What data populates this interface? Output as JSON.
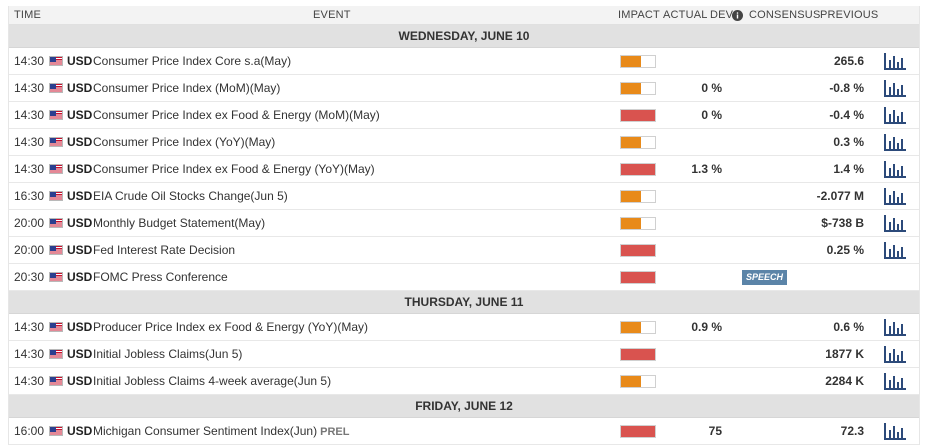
{
  "header": {
    "time": "TIME",
    "event": "EVENT",
    "impact": "IMPACT",
    "actual": "ACTUAL",
    "dev": "DEV",
    "consensus": "CONSENSUS",
    "previous": "PREVIOUS"
  },
  "colors": {
    "impact_high": "#d9534f",
    "impact_medium": "#e88a1a",
    "chart_icon": "#2c4a7a",
    "speech_badge": "#5b84a8"
  },
  "days": [
    {
      "label": "WEDNESDAY, JUNE 10",
      "events": [
        {
          "time": "14:30",
          "currency": "USD",
          "name": "Consumer Price Index Core s.a(May)",
          "impact": "medium",
          "actual": "",
          "consensus": "",
          "previous": "265.6"
        },
        {
          "time": "14:30",
          "currency": "USD",
          "name": "Consumer Price Index (MoM)(May)",
          "impact": "medium",
          "actual": "",
          "consensus": "0 %",
          "previous": "-0.8 %"
        },
        {
          "time": "14:30",
          "currency": "USD",
          "name": "Consumer Price Index ex Food & Energy (MoM)(May)",
          "impact": "high",
          "actual": "",
          "consensus": "0 %",
          "previous": "-0.4 %"
        },
        {
          "time": "14:30",
          "currency": "USD",
          "name": "Consumer Price Index (YoY)(May)",
          "impact": "medium",
          "actual": "",
          "consensus": "",
          "previous": "0.3 %"
        },
        {
          "time": "14:30",
          "currency": "USD",
          "name": "Consumer Price Index ex Food & Energy (YoY)(May)",
          "impact": "high",
          "actual": "",
          "consensus": "1.3 %",
          "previous": "1.4 %"
        },
        {
          "time": "16:30",
          "currency": "USD",
          "name": "EIA Crude Oil Stocks Change(Jun 5)",
          "impact": "medium",
          "actual": "",
          "consensus": "",
          "previous": "-2.077 M"
        },
        {
          "time": "20:00",
          "currency": "USD",
          "name": "Monthly Budget Statement(May)",
          "impact": "medium",
          "actual": "",
          "consensus": "",
          "previous": "$-738 B"
        },
        {
          "time": "20:00",
          "currency": "USD",
          "name": "Fed Interest Rate Decision",
          "impact": "high",
          "actual": "",
          "consensus": "",
          "previous": "0.25 %"
        },
        {
          "time": "20:30",
          "currency": "USD",
          "name": "FOMC Press Conference",
          "impact": "high",
          "badge": "SPEECH",
          "actual": "",
          "consensus": "",
          "previous": ""
        }
      ]
    },
    {
      "label": "THURSDAY, JUNE 11",
      "events": [
        {
          "time": "14:30",
          "currency": "USD",
          "name": "Producer Price Index ex Food & Energy (YoY)(May)",
          "impact": "medium",
          "actual": "",
          "consensus": "0.9 %",
          "previous": "0.6 %"
        },
        {
          "time": "14:30",
          "currency": "USD",
          "name": "Initial Jobless Claims(Jun 5)",
          "impact": "high",
          "actual": "",
          "consensus": "",
          "previous": "1877 K"
        },
        {
          "time": "14:30",
          "currency": "USD",
          "name": "Initial Jobless Claims 4-week average(Jun 5)",
          "impact": "medium",
          "actual": "",
          "consensus": "",
          "previous": "2284 K"
        }
      ]
    },
    {
      "label": "FRIDAY, JUNE 12",
      "events": [
        {
          "time": "16:00",
          "currency": "USD",
          "name": "Michigan Consumer Sentiment Index(Jun)",
          "tag": "PREL",
          "impact": "high",
          "actual": "",
          "consensus": "75",
          "previous": "72.3"
        }
      ]
    }
  ]
}
